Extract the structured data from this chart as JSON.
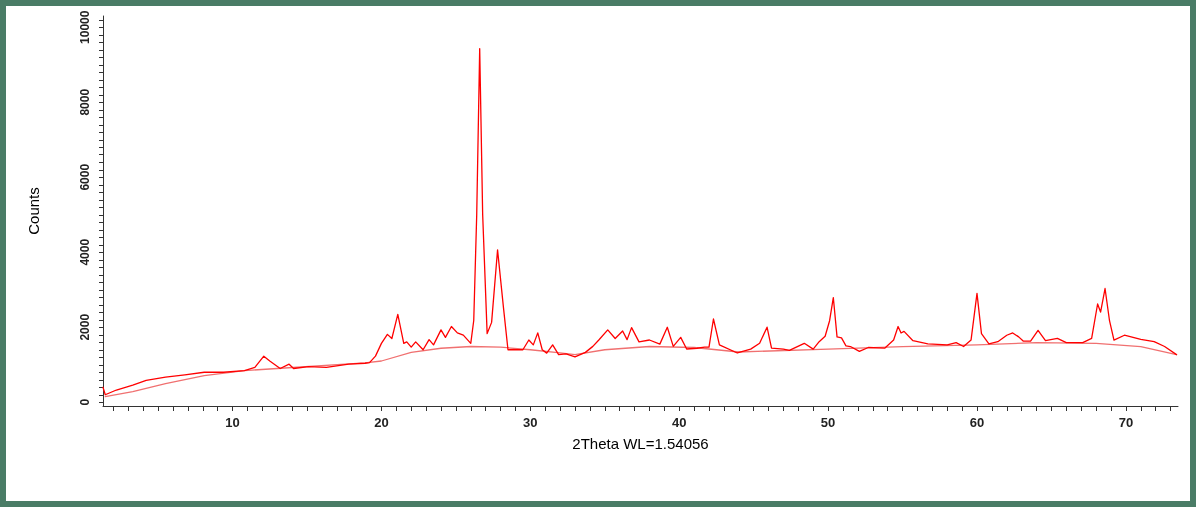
{
  "chart_data": {
    "type": "line",
    "xlabel": "2Theta WL=1.54056",
    "ylabel": "Counts",
    "xlim": [
      1.3,
      73.5
    ],
    "ylim": [
      -100,
      10300
    ],
    "xticks": [
      10,
      20,
      30,
      40,
      50,
      60,
      70
    ],
    "yticks": [
      0,
      2000,
      4000,
      6000,
      8000,
      10000
    ],
    "grid": false,
    "marker": "none",
    "line_style": "solid",
    "series": [
      {
        "color": "#ff0000",
        "x": [
          1.3,
          1.45,
          2.2,
          3.3,
          4.2,
          5.5,
          6.8,
          8.1,
          9.4,
          10.8,
          11.5,
          12.1,
          12.5,
          13.2,
          13.8,
          14.1,
          15.1,
          16.3,
          17.8,
          18.9,
          19.2,
          19.6,
          20.0,
          20.4,
          20.7,
          21.1,
          21.5,
          21.7,
          22.0,
          22.3,
          22.8,
          23.2,
          23.5,
          24.0,
          24.3,
          24.7,
          25.1,
          25.5,
          26.0,
          26.2,
          26.4,
          26.6,
          26.8,
          27.1,
          27.4,
          27.8,
          28.2,
          28.5,
          29.1,
          29.5,
          29.9,
          30.2,
          30.5,
          30.8,
          31.1,
          31.5,
          31.9,
          32.4,
          33.0,
          33.7,
          34.2,
          34.6,
          35.2,
          35.7,
          36.2,
          36.5,
          36.8,
          37.3,
          38.0,
          38.7,
          39.2,
          39.6,
          40.1,
          40.5,
          41.2,
          41.7,
          42.0,
          42.3,
          42.7,
          43.9,
          44.8,
          45.4,
          45.9,
          46.2,
          47.0,
          47.4,
          48.4,
          49.0,
          49.4,
          49.8,
          50.1,
          50.35,
          50.6,
          50.9,
          51.2,
          51.5,
          52.1,
          52.7,
          53.8,
          54.4,
          54.7,
          54.9,
          55.1,
          55.7,
          56.7,
          58.0,
          58.6,
          59.1,
          59.6,
          60.0,
          60.3,
          60.8,
          61.4,
          62.0,
          62.4,
          62.8,
          63.1,
          63.6,
          64.1,
          64.6,
          65.4,
          66.0,
          67.1,
          67.7,
          68.1,
          68.3,
          68.6,
          68.9,
          69.2,
          69.9,
          71.0,
          71.9,
          72.6,
          73.4
        ],
        "values": [
          400,
          200,
          326,
          455,
          585,
          670,
          730,
          800,
          800,
          843,
          928,
          1229,
          1100,
          900,
          1015,
          900,
          950,
          928,
          1015,
          1040,
          1055,
          1230,
          1570,
          1810,
          1700,
          2345,
          1570,
          1610,
          1470,
          1610,
          1400,
          1670,
          1530,
          1930,
          1730,
          2020,
          1850,
          1790,
          1570,
          2180,
          5000,
          9430,
          5000,
          1830,
          2130,
          4064,
          2510,
          1400,
          1400,
          1400,
          1660,
          1530,
          1850,
          1400,
          1310,
          1530,
          1270,
          1290,
          1210,
          1330,
          1490,
          1660,
          1930,
          1700,
          1900,
          1670,
          1990,
          1610,
          1660,
          1550,
          2000,
          1490,
          1730,
          1420,
          1440,
          1470,
          1470,
          2220,
          1530,
          1314,
          1417,
          1572,
          2002,
          1442,
          1417,
          1383,
          1572,
          1417,
          1615,
          1760,
          2174,
          2792,
          1743,
          1717,
          1503,
          1486,
          1357,
          1460,
          1442,
          1658,
          2020,
          1848,
          1891,
          1641,
          1555,
          1530,
          1590,
          1486,
          1658,
          2904,
          1830,
          1555,
          1615,
          1787,
          1848,
          1743,
          1632,
          1632,
          1916,
          1641,
          1701,
          1590,
          1590,
          1701,
          2620,
          2405,
          3033,
          2174,
          1658,
          1787,
          1675,
          1615,
          1486,
          1271
        ]
      },
      {
        "color": "#f07070",
        "x": [
          1.45,
          3.3,
          5.5,
          8.1,
          10.8,
          13.0,
          18.9,
          20.0,
          22.0,
          24.0,
          26.0,
          28.0,
          30.0,
          32.0,
          33.0,
          35.0,
          38.0,
          41.0,
          44.0,
          50.0,
          55.0,
          60.0,
          64.0,
          68.0,
          71.0,
          73.4
        ],
        "values": [
          150,
          283,
          497,
          712,
          843,
          900,
          1050,
          1100,
          1330,
          1440,
          1487,
          1470,
          1400,
          1315,
          1270,
          1400,
          1487,
          1460,
          1340,
          1417,
          1486,
          1530,
          1590,
          1572,
          1486,
          1271
        ]
      }
    ]
  }
}
